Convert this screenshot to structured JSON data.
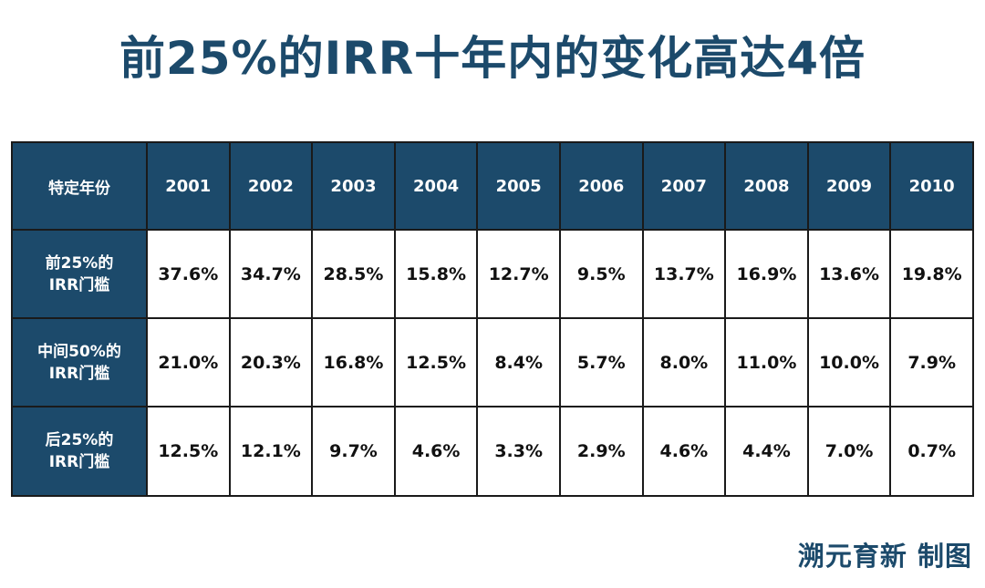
{
  "title": "前25%的IRR十年内的变化高达4倍",
  "credit": "溯元育新 制图",
  "colors": {
    "header_bg": "#1c4a6b",
    "title_text": "#1c4a6b",
    "credit_text": "#1c4a6b",
    "grid": "#1a1a1a"
  },
  "chart_data": {
    "type": "table",
    "title": "前25%的IRR十年内的变化高达4倍",
    "corner_label": "特定年份",
    "categories": [
      "2001",
      "2002",
      "2003",
      "2004",
      "2005",
      "2006",
      "2007",
      "2008",
      "2009",
      "2010"
    ],
    "series": [
      {
        "name_lines": [
          "前25%的",
          "IRR门槛"
        ],
        "values": [
          "37.6%",
          "34.7%",
          "28.5%",
          "15.8%",
          "12.7%",
          "9.5%",
          "13.7%",
          "16.9%",
          "13.6%",
          "19.8%"
        ]
      },
      {
        "name_lines": [
          "中间50%的",
          "IRR门槛"
        ],
        "values": [
          "21.0%",
          "20.3%",
          "16.8%",
          "12.5%",
          "8.4%",
          "5.7%",
          "8.0%",
          "11.0%",
          "10.0%",
          "7.9%"
        ]
      },
      {
        "name_lines": [
          "后25%的",
          "IRR门槛"
        ],
        "values": [
          "12.5%",
          "12.1%",
          "9.7%",
          "4.6%",
          "3.3%",
          "2.9%",
          "4.6%",
          "4.4%",
          "7.0%",
          "0.7%"
        ]
      }
    ]
  }
}
